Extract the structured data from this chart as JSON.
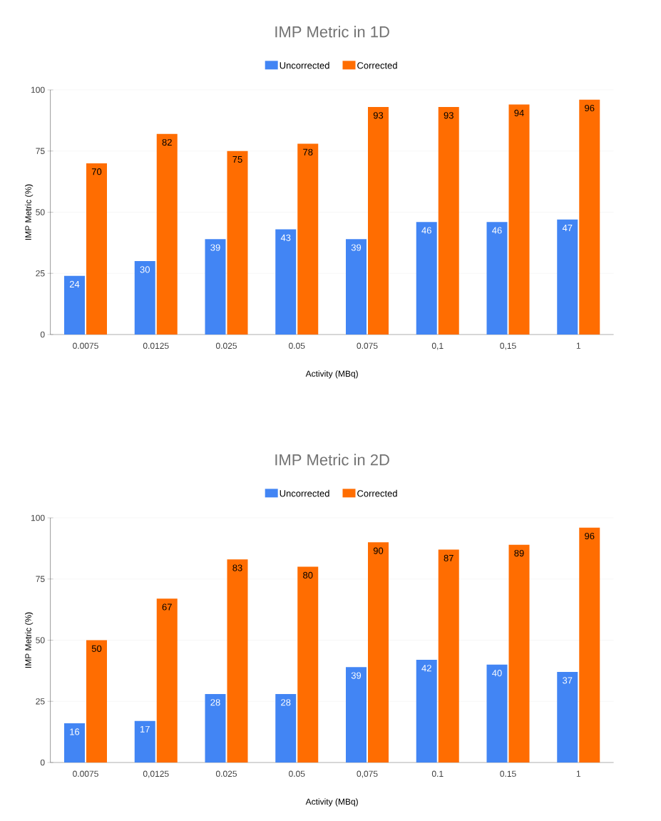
{
  "chart_data": [
    {
      "type": "bar",
      "title": "IMP Metric in 1D",
      "xlabel": "Activity (MBq)",
      "ylabel": "IMP Metric (%)",
      "categories": [
        "0.0075",
        "0.0125",
        "0.025",
        "0.05",
        "0.075",
        "0,1",
        "0,15",
        "1"
      ],
      "series": [
        {
          "name": "Uncorrected",
          "color": "#4285f4",
          "values": [
            24,
            30,
            39,
            43,
            39,
            46,
            46,
            47
          ]
        },
        {
          "name": "Corrected",
          "color": "#ff6d01",
          "values": [
            70,
            82,
            75,
            78,
            93,
            93,
            94,
            96
          ]
        }
      ],
      "ylim": [
        0,
        100
      ],
      "yticks": [
        0,
        25,
        50,
        75,
        100
      ],
      "grid": "y",
      "legend": "top",
      "data_labels": true
    },
    {
      "type": "bar",
      "title": "IMP Metric in 2D",
      "xlabel": "Activity (MBq)",
      "ylabel": "IMP Metric (%)",
      "categories": [
        "0.0075",
        "0,0125",
        "0.025",
        "0.05",
        "0,075",
        "0.1",
        "0.15",
        "1"
      ],
      "series": [
        {
          "name": "Uncorrected",
          "color": "#4285f4",
          "values": [
            16,
            17,
            28,
            28,
            39,
            42,
            40,
            37
          ]
        },
        {
          "name": "Corrected",
          "color": "#ff6d01",
          "values": [
            50,
            67,
            83,
            80,
            90,
            87,
            89,
            96
          ]
        }
      ],
      "ylim": [
        0,
        100
      ],
      "yticks": [
        0,
        25,
        50,
        75,
        100
      ],
      "grid": "y",
      "legend": "top",
      "data_labels": true
    }
  ]
}
